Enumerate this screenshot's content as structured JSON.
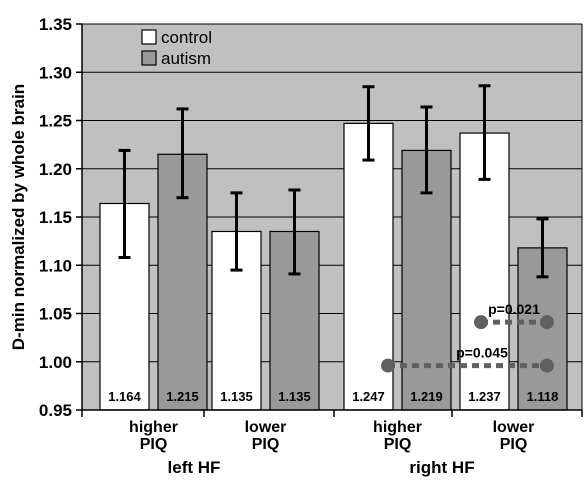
{
  "chart_data": {
    "type": "bar",
    "ylabel": "D-min normalized by whole brain",
    "ylim": [
      0.95,
      1.35
    ],
    "yticks": [
      "0.95",
      "1.00",
      "1.05",
      "1.10",
      "1.15",
      "1.20",
      "1.25",
      "1.30",
      "1.35"
    ],
    "grid": true,
    "legend_position": "top-left",
    "categories": [
      [
        "higher",
        "PIQ"
      ],
      [
        "lower",
        "PIQ"
      ],
      [
        "higher",
        "PIQ"
      ],
      [
        "lower",
        "PIQ"
      ]
    ],
    "groups": [
      "left HF",
      "right HF"
    ],
    "series": [
      {
        "name": "control",
        "color": "#ffffff",
        "values": [
          1.164,
          1.135,
          1.247,
          1.237
        ],
        "labels": [
          "1.164",
          "1.135",
          "1.247",
          "1.237"
        ],
        "error_low": [
          1.108,
          1.095,
          1.209,
          1.189
        ],
        "error_high": [
          1.219,
          1.175,
          1.285,
          1.286
        ]
      },
      {
        "name": "autism",
        "color": "#999999",
        "values": [
          1.215,
          1.135,
          1.219,
          1.118
        ],
        "labels": [
          "1.215",
          "1.135",
          "1.219",
          "1.118"
        ],
        "error_low": [
          1.17,
          1.091,
          1.175,
          1.088
        ],
        "error_high": [
          1.262,
          1.178,
          1.264,
          1.148
        ]
      }
    ],
    "annotations": [
      {
        "text": "p=0.021",
        "y": 1.041
      },
      {
        "text": "p=0.045",
        "y": 0.996
      }
    ]
  }
}
